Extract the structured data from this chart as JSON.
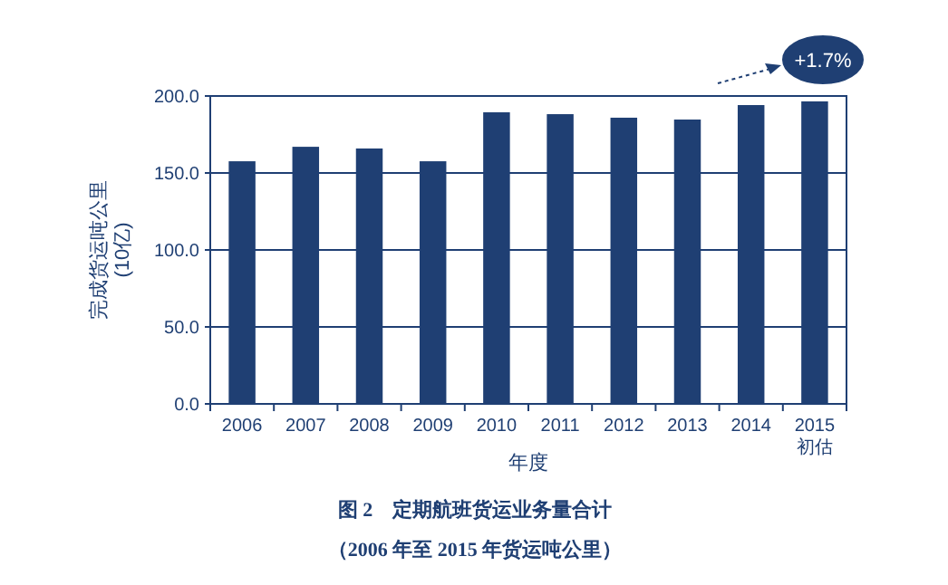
{
  "chart_data": {
    "type": "bar",
    "title": "图 2　定期航班货运业务量合计",
    "subtitle": "（2006 年至 2015 年货运吨公里）",
    "xlabel": "年度",
    "ylabel": "完成货运吨公里\n(10亿)",
    "categories": [
      "2006",
      "2007",
      "2008",
      "2009",
      "2010",
      "2011",
      "2012",
      "2013",
      "2014",
      "2015\n初估"
    ],
    "values": [
      157.6,
      167,
      165.9,
      157.6,
      189.4,
      188.2,
      185.9,
      184.7,
      194.1,
      196.5
    ],
    "color": "#1f3f73",
    "ylim": [
      0,
      200
    ],
    "yticks": [
      {
        "value": 0,
        "label": "0.0"
      },
      {
        "value": 50,
        "label": "50.0"
      },
      {
        "value": 100,
        "label": "100.0"
      },
      {
        "value": 150,
        "label": "150.0"
      },
      {
        "value": 200,
        "label": "200.0"
      }
    ],
    "grid": "y",
    "annotations": [
      "+1.7%"
    ]
  }
}
